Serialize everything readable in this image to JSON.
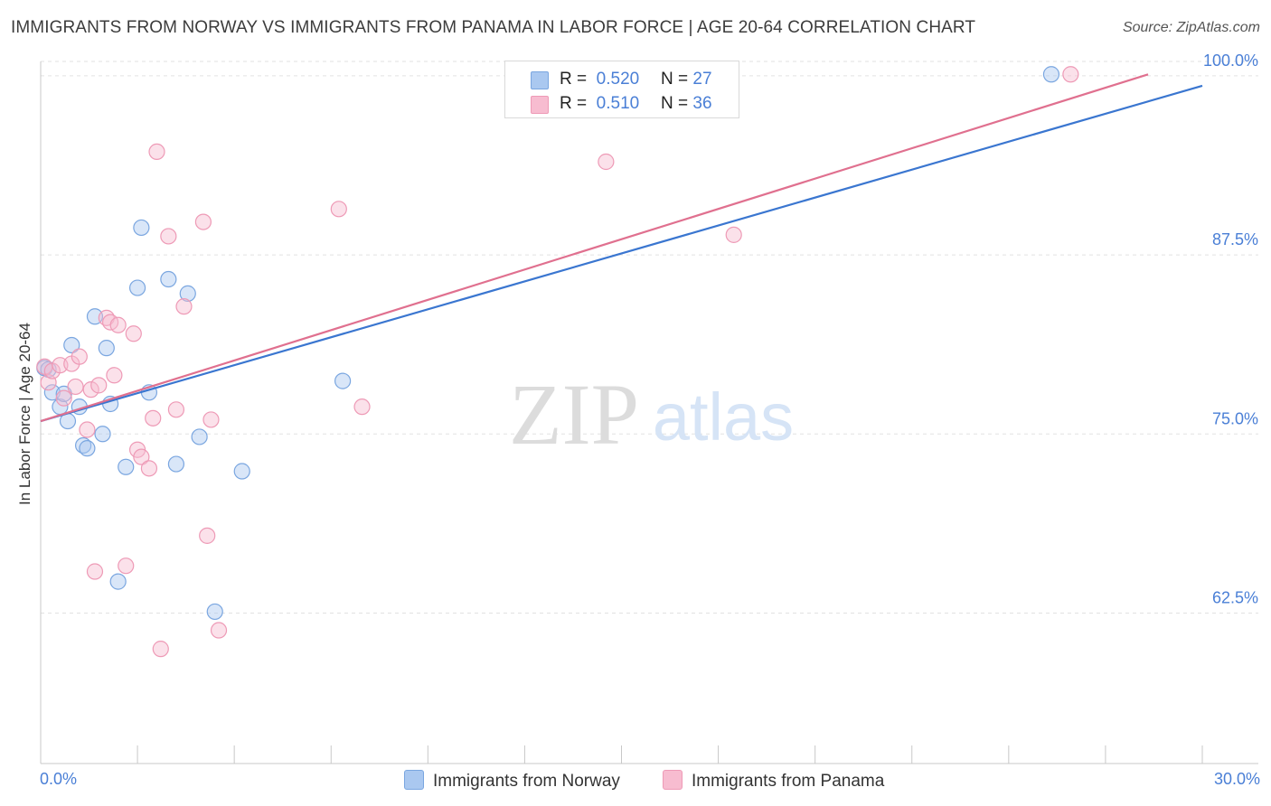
{
  "title": "IMMIGRANTS FROM NORWAY VS IMMIGRANTS FROM PANAMA IN LABOR FORCE | AGE 20-64 CORRELATION CHART",
  "source": "Source: ZipAtlas.com",
  "watermark": {
    "zip": "ZIP",
    "atlas": "atlas"
  },
  "legend_top": {
    "norway": {
      "r_label": "R =",
      "r_value": "0.520",
      "n_label": "N =",
      "n_value": "27"
    },
    "panama": {
      "r_label": "R =",
      "r_value": "0.510",
      "n_label": "N =",
      "n_value": "36"
    }
  },
  "legend_bottom": {
    "norway": "Immigrants from Norway",
    "panama": "Immigrants from Panama"
  },
  "colors": {
    "norway_fill": "#aac8f0",
    "norway_stroke": "#7aa6e0",
    "norway_line": "#3a76d0",
    "panama_fill": "#f7bcd0",
    "panama_stroke": "#ee9ab6",
    "panama_line": "#e0708f",
    "tick_text": "#4a7fd6",
    "grid": "#e2e2e2"
  },
  "chart_data": {
    "type": "scatter",
    "title": "IMMIGRANTS FROM NORWAY VS IMMIGRANTS FROM PANAMA IN LABOR FORCE | AGE 20-64 CORRELATION CHART",
    "xlabel": "",
    "ylabel": "In Labor Force | Age 20-64",
    "xlim": [
      0,
      30
    ],
    "ylim": [
      52,
      101
    ],
    "x_tick_labels": [
      "0.0%",
      "30.0%"
    ],
    "y_ticks": [
      62.5,
      75.0,
      87.5,
      100.0
    ],
    "y_tick_labels": [
      "62.5%",
      "75.0%",
      "87.5%",
      "100.0%"
    ],
    "series": [
      {
        "name": "Immigrants from Norway",
        "r": 0.52,
        "n": 27,
        "trend": {
          "x": [
            0,
            30
          ],
          "y": [
            75.9,
            99.3
          ]
        },
        "points": [
          [
            0.1,
            79.6
          ],
          [
            0.2,
            79.5
          ],
          [
            0.3,
            77.9
          ],
          [
            0.5,
            76.9
          ],
          [
            0.6,
            77.8
          ],
          [
            0.7,
            75.9
          ],
          [
            0.8,
            81.2
          ],
          [
            1.0,
            76.9
          ],
          [
            1.1,
            74.2
          ],
          [
            1.2,
            74.0
          ],
          [
            1.4,
            83.2
          ],
          [
            1.6,
            75.0
          ],
          [
            1.7,
            81.0
          ],
          [
            1.8,
            77.1
          ],
          [
            2.0,
            64.7
          ],
          [
            2.2,
            72.7
          ],
          [
            2.5,
            85.2
          ],
          [
            2.6,
            89.4
          ],
          [
            2.8,
            77.9
          ],
          [
            3.3,
            85.8
          ],
          [
            3.5,
            72.9
          ],
          [
            3.8,
            84.8
          ],
          [
            4.1,
            74.8
          ],
          [
            4.5,
            62.6
          ],
          [
            5.2,
            72.4
          ],
          [
            7.8,
            78.7
          ],
          [
            26.1,
            100.1
          ]
        ]
      },
      {
        "name": "Immigrants from Panama",
        "r": 0.51,
        "n": 36,
        "trend": {
          "x": [
            0,
            28.6
          ],
          "y": [
            75.9,
            100.1
          ]
        },
        "points": [
          [
            0.1,
            79.7
          ],
          [
            0.2,
            78.6
          ],
          [
            0.3,
            79.4
          ],
          [
            0.5,
            79.8
          ],
          [
            0.6,
            77.5
          ],
          [
            0.8,
            79.9
          ],
          [
            0.9,
            78.3
          ],
          [
            1.0,
            80.4
          ],
          [
            1.2,
            75.3
          ],
          [
            1.3,
            78.1
          ],
          [
            1.4,
            65.4
          ],
          [
            1.5,
            78.4
          ],
          [
            1.7,
            83.1
          ],
          [
            1.8,
            82.8
          ],
          [
            1.9,
            79.1
          ],
          [
            2.0,
            82.6
          ],
          [
            2.2,
            65.8
          ],
          [
            2.4,
            82.0
          ],
          [
            2.5,
            73.9
          ],
          [
            2.6,
            73.4
          ],
          [
            2.8,
            72.6
          ],
          [
            2.9,
            76.1
          ],
          [
            3.0,
            94.7
          ],
          [
            3.1,
            60.0
          ],
          [
            3.3,
            88.8
          ],
          [
            3.5,
            76.7
          ],
          [
            3.7,
            83.9
          ],
          [
            4.2,
            89.8
          ],
          [
            4.3,
            67.9
          ],
          [
            4.4,
            76.0
          ],
          [
            4.6,
            61.3
          ],
          [
            7.7,
            90.7
          ],
          [
            8.3,
            76.9
          ],
          [
            14.6,
            94.0
          ],
          [
            17.9,
            88.9
          ],
          [
            26.6,
            100.1
          ]
        ]
      }
    ]
  }
}
